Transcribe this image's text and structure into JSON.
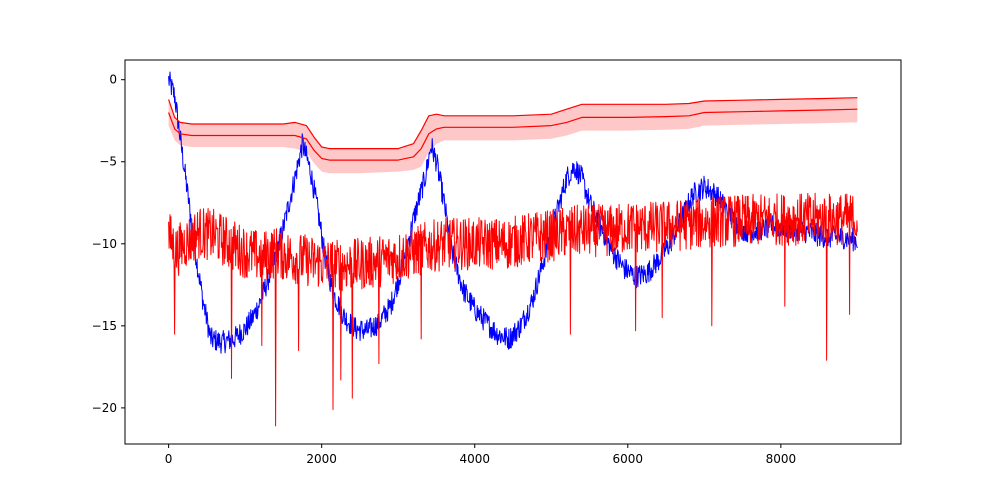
{
  "chart_data": {
    "type": "line",
    "title": "",
    "xlabel": "",
    "ylabel": "",
    "xlim": [
      -570,
      9570
    ],
    "ylim": [
      -22.2,
      1.2
    ],
    "x_ticks": [
      0,
      2000,
      4000,
      6000,
      8000
    ],
    "x_tick_labels": [
      "0",
      "2000",
      "4000",
      "6000",
      "8000"
    ],
    "y_ticks": [
      0,
      -5,
      -10,
      -15,
      -20
    ],
    "y_tick_labels": [
      "0",
      "−5",
      "−10",
      "−15",
      "−20"
    ],
    "grid": false,
    "legend": "none",
    "colors": {
      "blue_series": "#0000ff",
      "red_series": "#ff0000",
      "band_fill": "#ffc8c8"
    },
    "series": [
      {
        "color": "#0000ff",
        "style": "noisy",
        "x": [
          0,
          80,
          150,
          250,
          350,
          450,
          550,
          700,
          850,
          1000,
          1100,
          1200,
          1350,
          1500,
          1650,
          1750,
          1850,
          1950,
          2050,
          2150,
          2300,
          2450,
          2600,
          2750,
          2900,
          3050,
          3200,
          3350,
          3430,
          3500,
          3600,
          3700,
          3850,
          4000,
          4150,
          4300,
          4450,
          4600,
          4750,
          4900,
          5050,
          5200,
          5300,
          5400,
          5500,
          5650,
          5800,
          5950,
          6100,
          6250,
          6400,
          6550,
          6700,
          6850,
          7000,
          7150,
          7300,
          7450,
          7600,
          7750,
          7900,
          8050,
          8200,
          8350,
          8500,
          8650,
          8800,
          9000
        ],
        "y": [
          0,
          -1,
          -3.5,
          -7,
          -10.5,
          -13.5,
          -15.8,
          -16.0,
          -15.8,
          -15.2,
          -14.5,
          -13.5,
          -11.5,
          -9.0,
          -6.0,
          -3.9,
          -5.5,
          -8.0,
          -11.0,
          -13.0,
          -14.5,
          -15.2,
          -15.3,
          -14.8,
          -13.8,
          -11.5,
          -8.5,
          -6.0,
          -4.0,
          -5.0,
          -7.5,
          -10.5,
          -12.8,
          -14.0,
          -14.8,
          -15.5,
          -15.8,
          -15.0,
          -13.5,
          -11.0,
          -8.5,
          -6.0,
          -5.3,
          -6.0,
          -7.5,
          -9.0,
          -10.5,
          -11.5,
          -12.0,
          -11.8,
          -11.0,
          -10.0,
          -8.5,
          -7.0,
          -6.5,
          -7.0,
          -8.0,
          -9.0,
          -9.3,
          -9.1,
          -8.9,
          -9.0,
          -9.1,
          -9.3,
          -9.5,
          -9.6,
          -9.6,
          -9.8
        ],
        "noise_amplitude": 0.7
      },
      {
        "color": "#ff0000",
        "style": "noisy",
        "x": [
          0,
          100,
          200,
          400,
          600,
          800,
          1000,
          1200,
          1400,
          1600,
          1800,
          2000,
          2200,
          2400,
          2600,
          2800,
          3000,
          3200,
          3400,
          3600,
          3800,
          4000,
          4200,
          4400,
          4600,
          4800,
          5000,
          5200,
          5400,
          5600,
          5800,
          6000,
          6200,
          6400,
          6600,
          6800,
          7000,
          7200,
          7400,
          7600,
          7800,
          8000,
          8200,
          8400,
          8600,
          8800,
          9000
        ],
        "y": [
          -9.5,
          -10.5,
          -10.0,
          -9.3,
          -9.5,
          -10.0,
          -10.5,
          -10.8,
          -10.5,
          -10.8,
          -11.0,
          -11.2,
          -11.3,
          -11.3,
          -11.2,
          -11.0,
          -10.8,
          -10.5,
          -10.2,
          -10.0,
          -10.0,
          -10.0,
          -10.0,
          -10.0,
          -9.8,
          -9.6,
          -9.5,
          -9.3,
          -9.2,
          -9.2,
          -9.2,
          -9.0,
          -9.0,
          -9.0,
          -8.9,
          -8.8,
          -8.7,
          -8.6,
          -8.6,
          -8.6,
          -8.5,
          -8.5,
          -8.5,
          -8.5,
          -8.5,
          -8.5,
          -8.5
        ],
        "noise_amplitude": 1.6,
        "spikes": [
          [
            80,
            -15.5
          ],
          [
            820,
            -18.2
          ],
          [
            1220,
            -16.2
          ],
          [
            1400,
            -21.1
          ],
          [
            1700,
            -16.5
          ],
          [
            2150,
            -20.1
          ],
          [
            2250,
            -18.3
          ],
          [
            2400,
            -19.4
          ],
          [
            2750,
            -17.3
          ],
          [
            3300,
            -15.8
          ],
          [
            5250,
            -15.5
          ],
          [
            6100,
            -15.3
          ],
          [
            6450,
            -14.5
          ],
          [
            7100,
            -15.0
          ],
          [
            8050,
            -13.8
          ],
          [
            8600,
            -17.1
          ],
          [
            8900,
            -14.3
          ]
        ]
      },
      {
        "color": "#ff0000",
        "style": "line",
        "x": [
          0,
          80,
          150,
          300,
          500,
          1000,
          1500,
          1650,
          1800,
          1900,
          2000,
          2100,
          2500,
          3000,
          3200,
          3300,
          3400,
          3500,
          3600,
          4000,
          4500,
          5000,
          5200,
          5400,
          6000,
          6500,
          6800,
          7000,
          7500,
          8000,
          8500,
          9000
        ],
        "y": [
          -2.0,
          -3.0,
          -3.3,
          -3.4,
          -3.4,
          -3.4,
          -3.4,
          -3.4,
          -3.6,
          -4.3,
          -4.8,
          -4.9,
          -4.9,
          -4.9,
          -4.7,
          -4.2,
          -3.3,
          -3.0,
          -2.9,
          -2.9,
          -2.9,
          -2.8,
          -2.6,
          -2.3,
          -2.3,
          -2.25,
          -2.2,
          -2.0,
          -1.95,
          -1.9,
          -1.85,
          -1.8
        ]
      },
      {
        "color": "#ff0000",
        "style": "line",
        "x": [
          0,
          80,
          150,
          300,
          500,
          1000,
          1500,
          1650,
          1800,
          1900,
          2000,
          2100,
          2500,
          3000,
          3200,
          3300,
          3400,
          3500,
          3600,
          4000,
          4500,
          5000,
          5200,
          5400,
          6000,
          6500,
          6800,
          7000,
          7500,
          8000,
          8500,
          9000
        ],
        "y": [
          -1.2,
          -2.3,
          -2.6,
          -2.7,
          -2.7,
          -2.7,
          -2.7,
          -2.6,
          -2.8,
          -3.5,
          -4.1,
          -4.2,
          -4.2,
          -4.2,
          -3.9,
          -3.1,
          -2.2,
          -2.1,
          -2.2,
          -2.2,
          -2.2,
          -2.1,
          -1.8,
          -1.5,
          -1.5,
          -1.5,
          -1.45,
          -1.3,
          -1.25,
          -1.2,
          -1.15,
          -1.1
        ]
      }
    ],
    "band": {
      "color": "#ff0000",
      "x": [
        0,
        80,
        150,
        300,
        500,
        1000,
        1500,
        1650,
        1800,
        1900,
        2000,
        2100,
        2500,
        3000,
        3200,
        3300,
        3400,
        3500,
        3600,
        4000,
        4500,
        5000,
        5200,
        5400,
        6000,
        6500,
        6800,
        7000,
        7500,
        8000,
        8500,
        9000
      ],
      "upper": [
        -1.2,
        -2.3,
        -2.6,
        -2.7,
        -2.7,
        -2.7,
        -2.7,
        -2.6,
        -2.8,
        -3.5,
        -4.1,
        -4.2,
        -4.2,
        -4.2,
        -3.9,
        -3.1,
        -2.2,
        -2.1,
        -2.2,
        -2.2,
        -2.2,
        -2.1,
        -1.8,
        -1.5,
        -1.5,
        -1.5,
        -1.45,
        -1.3,
        -1.25,
        -1.2,
        -1.15,
        -1.1
      ],
      "lower": [
        -2.8,
        -3.7,
        -4.0,
        -4.1,
        -4.1,
        -4.1,
        -4.1,
        -4.2,
        -4.4,
        -5.1,
        -5.6,
        -5.7,
        -5.7,
        -5.6,
        -5.5,
        -5.3,
        -4.4,
        -3.9,
        -3.7,
        -3.7,
        -3.7,
        -3.6,
        -3.4,
        -3.1,
        -3.1,
        -3.05,
        -3.0,
        -2.8,
        -2.75,
        -2.7,
        -2.65,
        -2.6
      ]
    }
  }
}
